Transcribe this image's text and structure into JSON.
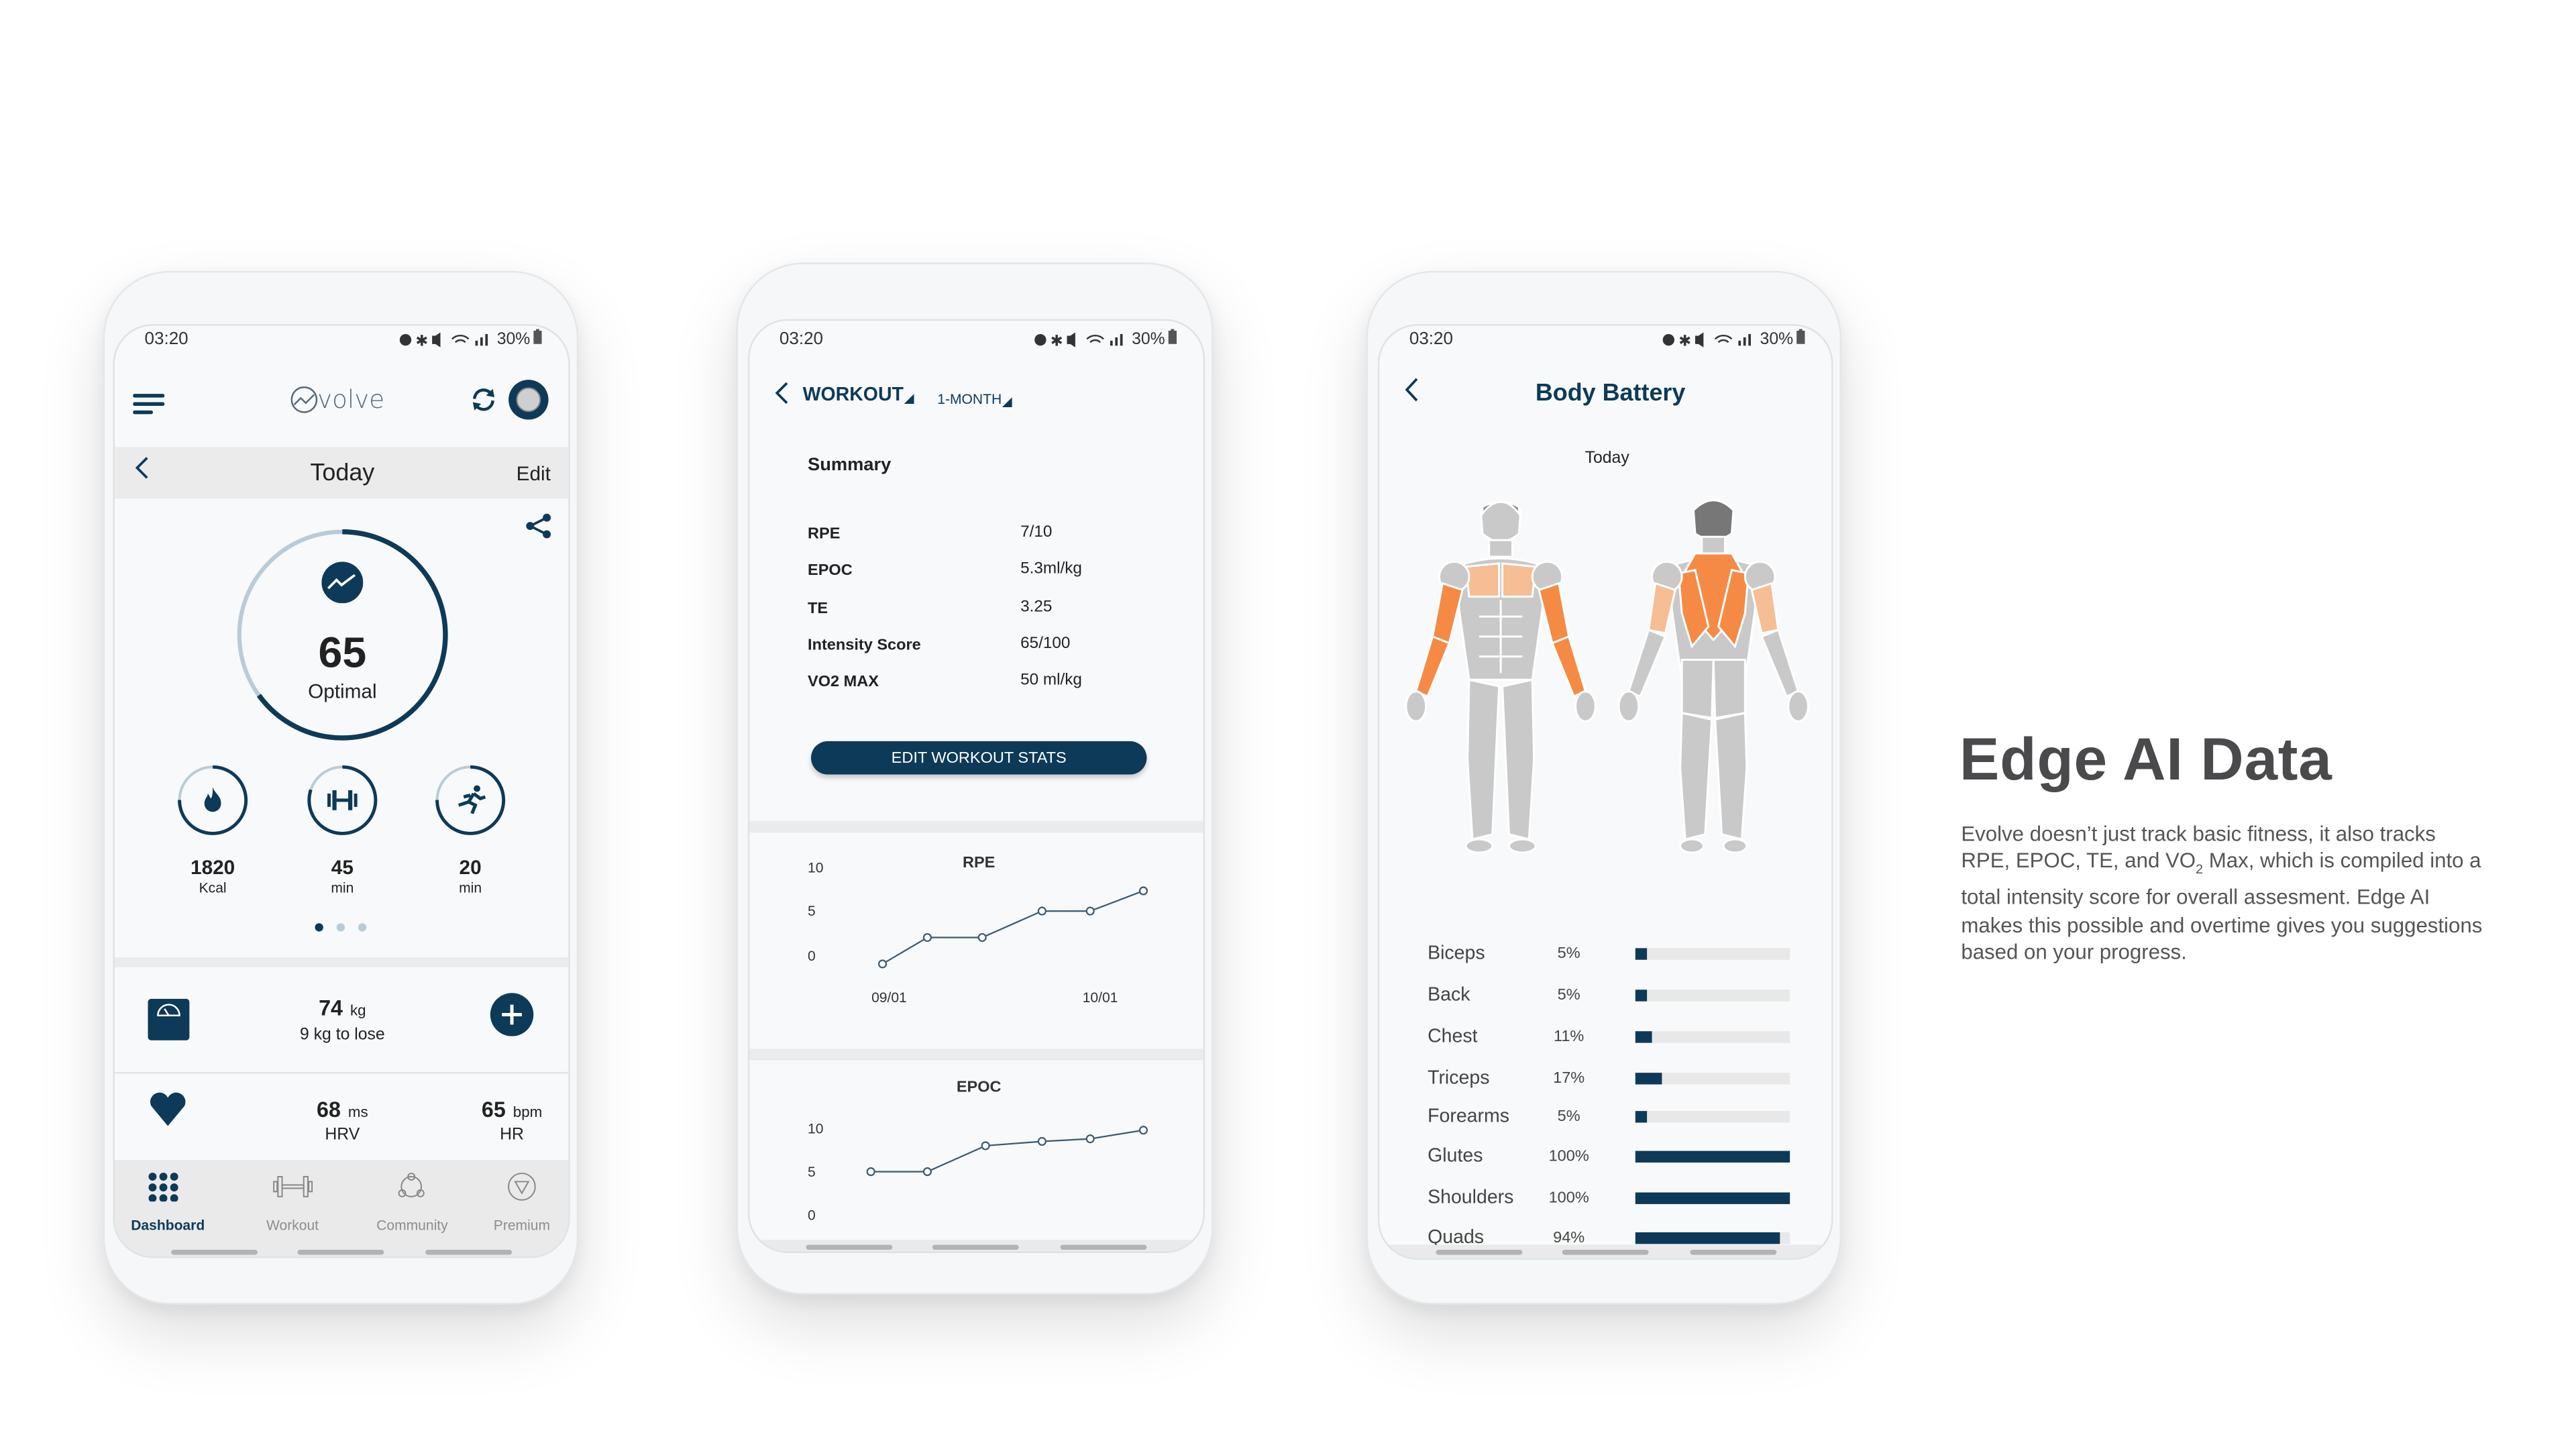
{
  "status_bar": {
    "time": "03:20",
    "battery": "30%"
  },
  "dashboard": {
    "logo": "Evolve",
    "header_title": "Today",
    "edit_label": "Edit",
    "score": {
      "value": "65",
      "label": "Optimal",
      "progress": 0.65
    },
    "stats": [
      {
        "value": "1820",
        "unit": "Kcal",
        "icon": "flame-icon",
        "progress": 0.75
      },
      {
        "value": "45",
        "unit": "min",
        "icon": "dumbbell-icon",
        "progress": 0.8
      },
      {
        "value": "20",
        "unit": "min",
        "icon": "running-icon",
        "progress": 0.75
      }
    ],
    "pager": {
      "count": 3,
      "active": 0
    },
    "weight": {
      "value": "74",
      "unit": "kg",
      "sub": "9 kg to lose"
    },
    "hrv": {
      "value": "68",
      "unit": "ms",
      "label": "HRV"
    },
    "hr": {
      "value": "65",
      "unit": "bpm",
      "label": "HR"
    },
    "nav": [
      {
        "label": "Dashboard",
        "icon": "grid-icon",
        "active": true
      },
      {
        "label": "Workout",
        "icon": "dumbbell-icon",
        "active": false
      },
      {
        "label": "Community",
        "icon": "community-icon",
        "active": false
      },
      {
        "label": "Premium",
        "icon": "diamond-icon",
        "active": false
      }
    ]
  },
  "workout": {
    "title": "WORKOUT",
    "period": "1-MONTH",
    "summary_title": "Summary",
    "summary": [
      {
        "label": "RPE",
        "value": "7/10"
      },
      {
        "label": "EPOC",
        "value": "5.3ml/kg"
      },
      {
        "label": "TE",
        "value": "3.25"
      },
      {
        "label": "Intensity Score",
        "value": "65/100"
      },
      {
        "label": "VO2 MAX",
        "value": "50 ml/kg"
      }
    ],
    "edit_button": "EDIT WORKOUT STATS"
  },
  "chart_data": [
    {
      "type": "line",
      "title": "RPE",
      "y_ticks": [
        "10",
        "5",
        "0"
      ],
      "ylim": [
        0,
        10
      ],
      "x_ticks": [
        "09/01",
        "10/01"
      ],
      "values": [
        0,
        3,
        3,
        6,
        6,
        8.3
      ]
    },
    {
      "type": "line",
      "title": "EPOC",
      "y_ticks": [
        "10",
        "5",
        "0"
      ],
      "ylim": [
        0,
        10
      ],
      "values": [
        5,
        5,
        8,
        8.5,
        8.8,
        9.8
      ]
    }
  ],
  "body_battery": {
    "title": "Body Battery",
    "subtitle": "Today",
    "highlight_color": "#f58a45",
    "highlight_light_color": "#f7bd94",
    "muscles": [
      {
        "label": "Biceps",
        "pct": "5%",
        "value": 5
      },
      {
        "label": "Back",
        "pct": "5%",
        "value": 5
      },
      {
        "label": "Chest",
        "pct": "11%",
        "value": 11
      },
      {
        "label": "Triceps",
        "pct": "17%",
        "value": 17
      },
      {
        "label": "Forearms",
        "pct": "5%",
        "value": 5
      },
      {
        "label": "Glutes",
        "pct": "100%",
        "value": 100
      },
      {
        "label": "Shoulders",
        "pct": "100%",
        "value": 100
      },
      {
        "label": "Quads",
        "pct": "94%",
        "value": 94
      }
    ]
  },
  "promo": {
    "title": "Edge AI Data",
    "body_part1": "Evolve doesn’t just track basic fitness, it also tracks RPE, EPOC, TE, and VO",
    "body_sub": "2",
    "body_part2": " Max, which is compiled into a total intensity score for overall assesment. Edge AI makes this possible and overtime gives you suggestions based on your progress."
  },
  "colors": {
    "primary": "#0d3a58",
    "ring_light": "#b9cbd6",
    "accent": "#f58a45"
  }
}
